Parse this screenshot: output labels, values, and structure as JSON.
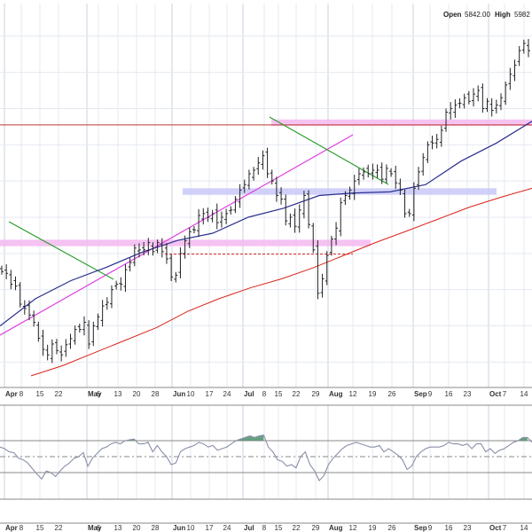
{
  "header": {
    "open_label": "Open",
    "open_value": "5842.00",
    "high_label": "High",
    "high_value": "5982"
  },
  "chart_data": [
    {
      "type": "ohlc",
      "title": "",
      "xlabel": "",
      "ylabel": "",
      "grid": true,
      "x_tick_labels": [
        "Apr",
        "8",
        "15",
        "22",
        "May",
        "6",
        "13",
        "20",
        "28",
        "Jun",
        "10",
        "17",
        "24",
        "Jul",
        "8",
        "15",
        "22",
        "29",
        "Aug",
        "12",
        "19",
        "26",
        "Sep",
        "9",
        "16",
        "23",
        "Oct",
        "7",
        "14"
      ],
      "month_labels": [
        "Apr",
        "May",
        "Jun",
        "Jul",
        "Aug",
        "Sep",
        "Oct"
      ],
      "ylim": [
        4930,
        5990
      ],
      "close_values": [
        5250,
        5245,
        5215,
        5210,
        5160,
        5148,
        5130,
        5110,
        5066,
        5035,
        5020,
        5050,
        5032,
        5020,
        5048,
        5065,
        5090,
        5090,
        5110,
        5050,
        5100,
        5125,
        5155,
        5165,
        5200,
        5215,
        5215,
        5255,
        5275,
        5315,
        5310,
        5310,
        5330,
        5305,
        5330,
        5305,
        5285,
        5235,
        5240,
        5300,
        5335,
        5360,
        5365,
        5405,
        5410,
        5400,
        5410,
        5385,
        5400,
        5410,
        5420,
        5450,
        5475,
        5490,
        5520,
        5530,
        5550,
        5570,
        5520,
        5500,
        5460,
        5450,
        5390,
        5400,
        5375,
        5420,
        5460,
        5380,
        5310,
        5190,
        5230,
        5295,
        5340,
        5370,
        5440,
        5460,
        5475,
        5500,
        5520,
        5525,
        5520,
        5530,
        5530,
        5505,
        5535,
        5520,
        5495,
        5475,
        5410,
        5410,
        5480,
        5525,
        5565,
        5600,
        5605,
        5615,
        5640,
        5690,
        5700,
        5710,
        5715,
        5730,
        5720,
        5740,
        5750,
        5700,
        5720,
        5695,
        5710,
        5730,
        5765,
        5795,
        5820,
        5860,
        5880,
        5860
      ],
      "series": [
        {
          "name": "",
          "kind": "moving-average",
          "color": "#2b2f8f",
          "values": [
            5100,
            5175,
            5225,
            5262,
            5303,
            5336,
            5356,
            5400,
            5425,
            5460,
            5467,
            5470,
            5490,
            5555,
            5605,
            5665
          ]
        },
        {
          "name": "",
          "kind": "moving-average",
          "color": "#d9231a",
          "values": [
            4962,
            4990,
            5025,
            5060,
            5095,
            5140,
            5175,
            5205,
            5230,
            5260,
            5295,
            5330,
            5362,
            5395,
            5428,
            5455,
            5480
          ]
        }
      ],
      "annotations": [
        {
          "kind": "horizontal-line",
          "value": 5655,
          "color": "#c0392b"
        },
        {
          "kind": "dashed-line",
          "value": 5298,
          "color": "#d9231a"
        },
        {
          "kind": "zone",
          "low": 5320,
          "high": 5338,
          "color": "#f3b8f0"
        },
        {
          "kind": "zone",
          "low": 5462,
          "high": 5480,
          "color": "#c8c8f8"
        },
        {
          "kind": "zone",
          "low": 5652,
          "high": 5670,
          "color": "#f3b8f0"
        },
        {
          "kind": "trendline",
          "color": "#e040e0"
        },
        {
          "kind": "trendline",
          "color": "#2e9e2e"
        }
      ]
    },
    {
      "type": "line",
      "title": "",
      "indicator": "oscillator",
      "ylim": [
        0,
        100
      ],
      "reference_levels": [
        70,
        50,
        30
      ],
      "values": [
        62,
        60,
        56,
        55,
        48,
        46,
        42,
        35,
        28,
        22,
        32,
        30,
        25,
        32,
        38,
        42,
        48,
        50,
        55,
        38,
        48,
        54,
        60,
        62,
        66,
        68,
        66,
        70,
        71,
        72,
        66,
        66,
        68,
        56,
        64,
        56,
        50,
        40,
        42,
        56,
        60,
        62,
        64,
        68,
        66,
        62,
        64,
        58,
        60,
        62,
        66,
        70,
        72,
        74,
        76,
        74,
        76,
        77,
        62,
        56,
        46,
        44,
        38,
        40,
        36,
        50,
        56,
        40,
        32,
        20,
        26,
        40,
        48,
        54,
        60,
        64,
        66,
        68,
        66,
        64,
        62,
        62,
        64,
        56,
        60,
        56,
        52,
        46,
        34,
        38,
        50,
        56,
        60,
        62,
        62,
        62,
        64,
        68,
        66,
        66,
        64,
        66,
        60,
        66,
        66,
        56,
        60,
        54,
        58,
        60,
        64,
        68,
        70,
        74,
        74,
        68
      ],
      "fill_above_color": "#4f8f6f"
    }
  ]
}
